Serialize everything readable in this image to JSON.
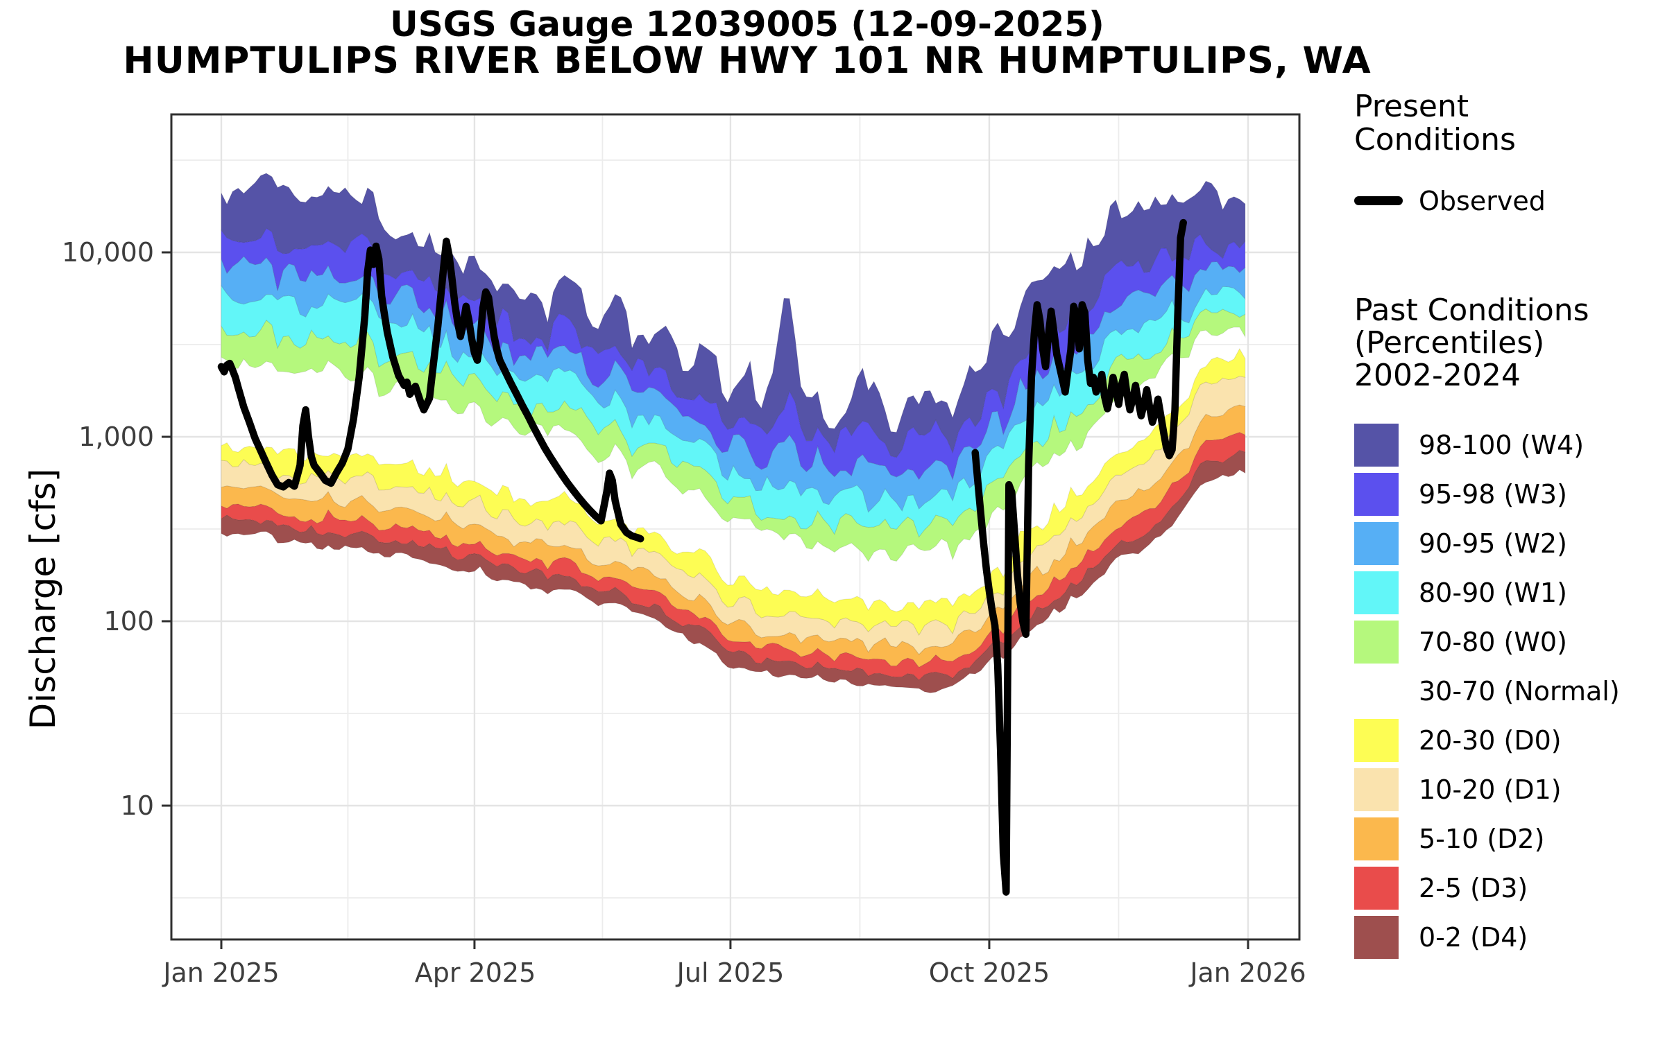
{
  "title": {
    "line1": "USGS Gauge 12039005 (12-09-2025)",
    "line2": "HUMPTULIPS RIVER BELOW HWY 101 NR HUMPTULIPS, WA"
  },
  "legend": {
    "present": {
      "title_lines": [
        "Present",
        "Conditions"
      ],
      "observed_label": "Observed",
      "observed_color": "#000000"
    },
    "past": {
      "title_lines": [
        "Past Conditions",
        "(Percentiles)",
        "2002-2024"
      ],
      "items": [
        {
          "label": "98-100 (W4)",
          "color": "#5553a7"
        },
        {
          "label": "95-98 (W3)",
          "color": "#5b50ee"
        },
        {
          "label": "90-95 (W2)",
          "color": "#56aff5"
        },
        {
          "label": "80-90 (W1)",
          "color": "#62f6f8"
        },
        {
          "label": "70-80 (W0)",
          "color": "#b5f87d"
        },
        {
          "label": "30-70 (Normal)",
          "color": null
        },
        {
          "label": "20-30 (D0)",
          "color": "#fdfd54"
        },
        {
          "label": "10-20 (D1)",
          "color": "#fae3ae"
        },
        {
          "label": "5-10 (D2)",
          "color": "#fbb84d"
        },
        {
          "label": "2-5 (D3)",
          "color": "#e94c4b"
        },
        {
          "label": "0-2 (D4)",
          "color": "#9e4f4e"
        }
      ]
    }
  },
  "chart_data": {
    "type": "area",
    "title": "USGS Gauge 12039005 (12-09-2025) HUMPTULIPS RIVER BELOW HWY 101 NR HUMPTULIPS, WA",
    "xlabel": "",
    "ylabel": "Discharge [cfs]",
    "x_axis": {
      "tick_labels": [
        "Jan 2025",
        "Apr 2025",
        "Jul 2025",
        "Oct 2025",
        "Jan 2026"
      ],
      "tick_days": [
        1,
        91,
        182,
        274,
        366
      ],
      "range_days": [
        1,
        366
      ]
    },
    "y_axis": {
      "scale": "log",
      "tick_labels": [
        "10",
        "100",
        "1,000",
        "10,000"
      ],
      "tick_values": [
        10,
        100,
        1000,
        10000
      ],
      "range": [
        1.9,
        56000
      ],
      "grid": true
    },
    "legend_position": "right",
    "percentile_levels": [
      "p0",
      "p2",
      "p5",
      "p10",
      "p20",
      "p30",
      "p70",
      "p80",
      "p90",
      "p95",
      "p98",
      "p100"
    ],
    "knot_days": [
      1,
      15,
      30,
      45,
      60,
      75,
      91,
      106,
      121,
      136,
      152,
      167,
      182,
      202,
      213,
      228,
      244,
      258,
      274,
      288,
      305,
      319,
      335,
      350,
      365
    ],
    "percentile_knots": {
      "p0": [
        310,
        295,
        265,
        250,
        230,
        210,
        188,
        165,
        145,
        125,
        105,
        82,
        57,
        50,
        48,
        45,
        43,
        41,
        58,
        85,
        135,
        205,
        280,
        560,
        650
      ],
      "p2": [
        370,
        355,
        320,
        300,
        275,
        250,
        222,
        195,
        172,
        148,
        124,
        98,
        67,
        59,
        56,
        53,
        51,
        49,
        68,
        100,
        165,
        250,
        340,
        700,
        820
      ],
      "p5": [
        440,
        420,
        380,
        360,
        330,
        300,
        262,
        230,
        202,
        174,
        146,
        116,
        79,
        70,
        66,
        62,
        60,
        58,
        82,
        125,
        205,
        310,
        430,
        900,
        1050
      ],
      "p10": [
        550,
        530,
        470,
        450,
        410,
        370,
        322,
        282,
        248,
        213,
        178,
        142,
        96,
        84,
        79,
        75,
        73,
        70,
        100,
        160,
        270,
        410,
        590,
        1250,
        1450
      ],
      "p20": [
        740,
        700,
        630,
        600,
        550,
        500,
        428,
        372,
        330,
        283,
        237,
        188,
        125,
        108,
        101,
        96,
        94,
        90,
        130,
        215,
        370,
        560,
        820,
        1800,
        2050
      ],
      "p30": [
        950,
        900,
        830,
        780,
        730,
        660,
        555,
        480,
        428,
        368,
        305,
        245,
        160,
        140,
        132,
        125,
        122,
        118,
        170,
        290,
        500,
        740,
        1100,
        2400,
        2700
      ],
      "p70": [
        2600,
        2500,
        2350,
        2200,
        1950,
        1700,
        1400,
        1150,
        980,
        820,
        660,
        530,
        330,
        285,
        265,
        245,
        235,
        230,
        350,
        590,
        950,
        1500,
        2100,
        3500,
        3600
      ],
      "p80": [
        4000,
        3800,
        3550,
        3300,
        2900,
        2450,
        2000,
        1600,
        1350,
        1120,
        900,
        715,
        440,
        375,
        350,
        325,
        315,
        310,
        500,
        850,
        1400,
        2200,
        2900,
        4300,
        4400
      ],
      "p90": [
        6200,
        5900,
        5500,
        5100,
        4300,
        3600,
        2800,
        2250,
        1900,
        1550,
        1250,
        990,
        610,
        520,
        480,
        450,
        440,
        440,
        750,
        1250,
        2200,
        3400,
        4200,
        5700,
        5900
      ],
      "p95": [
        9100,
        8600,
        8100,
        7400,
        6100,
        5100,
        3900,
        3100,
        2600,
        2150,
        1700,
        1350,
        850,
        730,
        680,
        640,
        630,
        640,
        1050,
        1750,
        3100,
        4900,
        6100,
        7500,
        7800
      ],
      "p98": [
        13500,
        12500,
        11800,
        10500,
        8600,
        7100,
        5300,
        4200,
        3500,
        2900,
        2300,
        1850,
        1200,
        1050,
        980,
        930,
        930,
        960,
        1550,
        2600,
        4600,
        7100,
        8800,
        10200,
        10800
      ],
      "p100": [
        22000,
        28000,
        25000,
        20000,
        15000,
        12000,
        8500,
        6500,
        5400,
        4500,
        3600,
        2900,
        2000,
        1600,
        1450,
        1300,
        1250,
        1300,
        3000,
        5200,
        10000,
        15000,
        19000,
        21000,
        19000
      ]
    },
    "spikes": [
      {
        "day": 202,
        "p100": 6000,
        "width": 3
      },
      {
        "day": 230,
        "p100": 2400,
        "width": 3
      },
      {
        "day": 252,
        "p100": 1500,
        "width": 2
      }
    ],
    "bands": [
      {
        "label": "0-2 (D4)",
        "lo": "p0",
        "hi": "p2",
        "color": "#9e4f4e"
      },
      {
        "label": "2-5 (D3)",
        "lo": "p2",
        "hi": "p5",
        "color": "#e94c4b"
      },
      {
        "label": "5-10 (D2)",
        "lo": "p5",
        "hi": "p10",
        "color": "#fbb84d"
      },
      {
        "label": "10-20 (D1)",
        "lo": "p10",
        "hi": "p20",
        "color": "#fae3ae"
      },
      {
        "label": "20-30 (D0)",
        "lo": "p20",
        "hi": "p30",
        "color": "#fdfd54"
      },
      {
        "label": "70-80 (W0)",
        "lo": "p70",
        "hi": "p80",
        "color": "#b5f87d"
      },
      {
        "label": "80-90 (W1)",
        "lo": "p80",
        "hi": "p90",
        "color": "#62f6f8"
      },
      {
        "label": "90-95 (W2)",
        "lo": "p90",
        "hi": "p95",
        "color": "#56aff5"
      },
      {
        "label": "95-98 (W3)",
        "lo": "p95",
        "hi": "p98",
        "color": "#5b50ee"
      },
      {
        "label": "98-100 (W4)",
        "lo": "p98",
        "hi": "p100",
        "color": "#5553a7"
      }
    ],
    "observed": {
      "name": "Observed",
      "color": "#000000",
      "segments": [
        [
          [
            1,
            2400
          ],
          [
            2,
            2250
          ],
          [
            3,
            2450
          ],
          [
            4,
            2500
          ],
          [
            5,
            2300
          ],
          [
            6,
            2100
          ],
          [
            7,
            1850
          ],
          [
            9,
            1450
          ],
          [
            11,
            1200
          ],
          [
            13,
            980
          ],
          [
            15,
            840
          ],
          [
            17,
            720
          ],
          [
            19,
            620
          ],
          [
            21,
            550
          ],
          [
            23,
            535
          ],
          [
            25,
            565
          ],
          [
            27,
            540
          ],
          [
            29,
            700
          ],
          [
            30,
            1150
          ],
          [
            31,
            1400
          ],
          [
            32,
            1000
          ],
          [
            33,
            780
          ],
          [
            34,
            700
          ],
          [
            36,
            640
          ],
          [
            38,
            580
          ],
          [
            40,
            560
          ],
          [
            42,
            640
          ],
          [
            44,
            720
          ],
          [
            46,
            860
          ],
          [
            48,
            1250
          ],
          [
            50,
            2100
          ],
          [
            52,
            4500
          ],
          [
            53,
            7800
          ],
          [
            54,
            10300
          ],
          [
            55,
            8600
          ],
          [
            56,
            10800
          ],
          [
            57,
            9200
          ],
          [
            58,
            5800
          ],
          [
            59,
            4600
          ],
          [
            60,
            3700
          ],
          [
            62,
            2700
          ],
          [
            64,
            2150
          ],
          [
            66,
            1900
          ],
          [
            67,
            1980
          ],
          [
            68,
            1700
          ],
          [
            70,
            1880
          ],
          [
            72,
            1520
          ],
          [
            73,
            1400
          ],
          [
            75,
            1620
          ],
          [
            76,
            2200
          ],
          [
            78,
            4000
          ],
          [
            80,
            8200
          ],
          [
            81,
            11500
          ],
          [
            82,
            9600
          ],
          [
            83,
            7200
          ],
          [
            84,
            5300
          ],
          [
            85,
            4200
          ],
          [
            86,
            3500
          ],
          [
            87,
            4100
          ],
          [
            88,
            5100
          ],
          [
            89,
            4300
          ],
          [
            90,
            3400
          ],
          [
            91,
            2850
          ],
          [
            92,
            2600
          ],
          [
            93,
            3300
          ],
          [
            94,
            5000
          ],
          [
            95,
            6100
          ],
          [
            96,
            5700
          ],
          [
            97,
            4400
          ],
          [
            98,
            3500
          ],
          [
            99,
            2950
          ],
          [
            100,
            2600
          ],
          [
            102,
            2250
          ],
          [
            104,
            1950
          ],
          [
            106,
            1700
          ],
          [
            108,
            1480
          ],
          [
            110,
            1300
          ],
          [
            112,
            1130
          ],
          [
            114,
            990
          ],
          [
            116,
            870
          ],
          [
            118,
            775
          ],
          [
            120,
            695
          ],
          [
            122,
            625
          ],
          [
            124,
            565
          ],
          [
            126,
            515
          ],
          [
            128,
            470
          ],
          [
            130,
            432
          ],
          [
            132,
            400
          ],
          [
            134,
            372
          ],
          [
            136,
            350
          ],
          [
            138,
            500
          ],
          [
            139,
            635
          ],
          [
            140,
            580
          ],
          [
            141,
            450
          ],
          [
            143,
            335
          ],
          [
            145,
            303
          ],
          [
            147,
            290
          ],
          [
            149,
            284
          ],
          [
            150,
            280
          ]
        ],
        [
          [
            269,
            820
          ],
          [
            270,
            560
          ],
          [
            271,
            380
          ],
          [
            272,
            265
          ],
          [
            273,
            190
          ],
          [
            274,
            145
          ],
          [
            275,
            115
          ],
          [
            276,
            95
          ],
          [
            277,
            58
          ],
          [
            278,
            20
          ],
          [
            279,
            5.5
          ],
          [
            280,
            3.4
          ],
          [
            281,
            550
          ],
          [
            282,
            500
          ],
          [
            283,
            300
          ],
          [
            284,
            180
          ],
          [
            285,
            125
          ],
          [
            286,
            98
          ],
          [
            287,
            85
          ],
          [
            288,
            700
          ],
          [
            289,
            2100
          ],
          [
            290,
            3600
          ],
          [
            291,
            5200
          ],
          [
            292,
            4300
          ],
          [
            293,
            3000
          ],
          [
            294,
            2400
          ],
          [
            295,
            3500
          ],
          [
            296,
            4800
          ],
          [
            297,
            3700
          ],
          [
            298,
            2800
          ],
          [
            299,
            2400
          ],
          [
            300,
            2050
          ],
          [
            301,
            1750
          ],
          [
            302,
            2300
          ],
          [
            303,
            2950
          ],
          [
            304,
            5100
          ],
          [
            305,
            4600
          ],
          [
            306,
            3000
          ],
          [
            307,
            5200
          ],
          [
            308,
            4700
          ],
          [
            309,
            2600
          ],
          [
            310,
            1950
          ],
          [
            311,
            2100
          ],
          [
            312,
            1750
          ],
          [
            313,
            1880
          ],
          [
            314,
            2180
          ],
          [
            315,
            1650
          ],
          [
            316,
            1420
          ],
          [
            317,
            1680
          ],
          [
            318,
            2100
          ],
          [
            319,
            1800
          ],
          [
            320,
            1500
          ],
          [
            321,
            1900
          ],
          [
            322,
            2180
          ],
          [
            323,
            1700
          ],
          [
            324,
            1400
          ],
          [
            325,
            1600
          ],
          [
            326,
            1900
          ],
          [
            327,
            1550
          ],
          [
            328,
            1300
          ],
          [
            329,
            1500
          ],
          [
            330,
            1800
          ],
          [
            331,
            1450
          ],
          [
            332,
            1200
          ],
          [
            333,
            1350
          ],
          [
            334,
            1600
          ],
          [
            335,
            1300
          ],
          [
            336,
            1050
          ],
          [
            337,
            870
          ],
          [
            338,
            790
          ],
          [
            339,
            850
          ],
          [
            340,
            1400
          ],
          [
            341,
            4500
          ],
          [
            342,
            12000
          ],
          [
            343,
            14500
          ]
        ]
      ]
    }
  }
}
